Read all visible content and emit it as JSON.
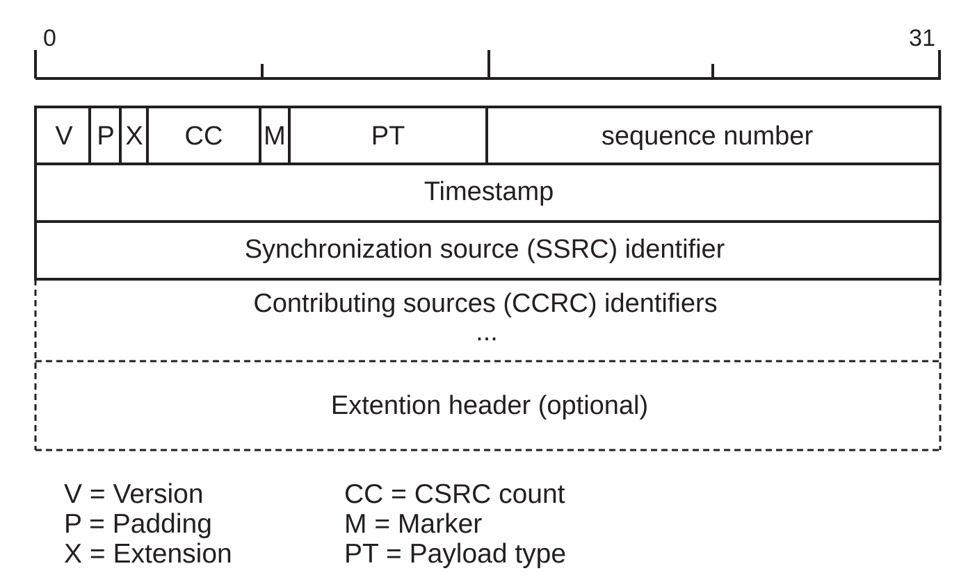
{
  "scale": {
    "start_bit": "0",
    "end_bit": "31"
  },
  "header_row": {
    "version": "V",
    "padding": "P",
    "extension": "X",
    "csrc_count": "CC",
    "marker": "M",
    "payload_type": "PT",
    "sequence_number": "sequence number"
  },
  "rows": {
    "timestamp": "Timestamp",
    "ssrc": "Synchronization source (SSRC) identifier",
    "csrc": "Contributing sources (CCRC) identifiers",
    "csrc_more": "...",
    "extension_header": "Extention header (optional)"
  },
  "legend": {
    "left": [
      "V = Version",
      "P = Padding",
      "X = Extension"
    ],
    "right": [
      "CC = CSRC count",
      "M = Marker",
      "PT = Payload type"
    ]
  }
}
